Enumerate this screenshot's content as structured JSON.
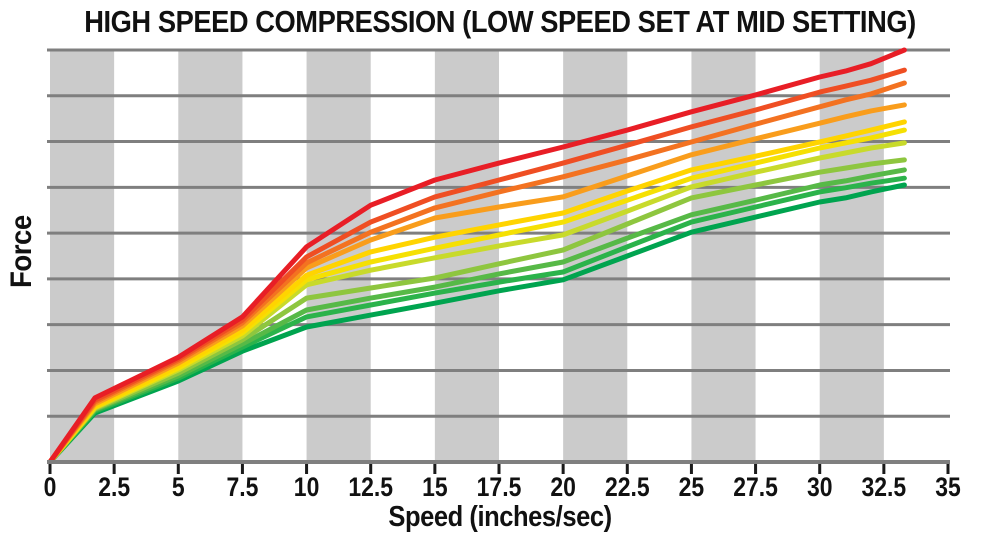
{
  "title": "HIGH SPEED COMPRESSION (LOW SPEED SET AT MID SETTING)",
  "chart_data": {
    "type": "line",
    "title": "HIGH SPEED COMPRESSION (LOW SPEED SET AT MID SETTING)",
    "xlabel": "Speed (inches/sec)",
    "ylabel": "Force",
    "xlim": [
      0,
      35
    ],
    "ylim": [
      0,
      9
    ],
    "x_tick_values": [
      0,
      2.5,
      5,
      7.5,
      10,
      12.5,
      15,
      17.5,
      20,
      22.5,
      25,
      27.5,
      30,
      32.5,
      35
    ],
    "x_tick_labels": [
      "0",
      "2.5",
      "5",
      "7.5",
      "10",
      "12.5",
      "15",
      "17.5",
      "20",
      "22.5",
      "25",
      "27.5",
      "30",
      "32.5",
      "35"
    ],
    "y_gridline_count": 10,
    "grid_on": true,
    "legend": "none",
    "colors": {
      "grid": "#7f7f7f",
      "stripe": "#cbcbcb",
      "tick": "#1a1a1a",
      "background": "#ffffff"
    },
    "background_stripes": {
      "note": "alternating vertical bands, gray on even 2.5-unit intervals",
      "gray_intervals": [
        [
          0,
          2.5
        ],
        [
          5,
          7.5
        ],
        [
          10,
          12.5
        ],
        [
          15,
          17.5
        ],
        [
          20,
          22.5
        ],
        [
          25,
          27.5
        ],
        [
          30,
          32.5
        ]
      ]
    },
    "x": [
      0,
      1.75,
      5,
      7.5,
      10,
      12.5,
      15,
      17.5,
      20,
      22.5,
      25,
      27.5,
      30,
      31,
      32,
      33.3
    ],
    "series": [
      {
        "name": "red",
        "color": "#e81e26",
        "values": [
          0,
          1.4,
          2.29,
          3.17,
          4.7,
          5.61,
          6.16,
          6.53,
          6.88,
          7.25,
          7.65,
          8.02,
          8.41,
          8.54,
          8.7,
          9.0
        ]
      },
      {
        "name": "red-orange",
        "color": "#ef4e23",
        "values": [
          0,
          1.35,
          2.25,
          3.1,
          4.48,
          5.24,
          5.79,
          6.16,
          6.53,
          6.92,
          7.32,
          7.69,
          8.08,
          8.21,
          8.34,
          8.56
        ]
      },
      {
        "name": "orange",
        "color": "#f37221",
        "values": [
          0,
          1.31,
          2.21,
          3.04,
          4.35,
          5.02,
          5.55,
          5.9,
          6.23,
          6.6,
          6.99,
          7.38,
          7.76,
          7.91,
          8.04,
          8.28
        ]
      },
      {
        "name": "amber",
        "color": "#f99d1c",
        "values": [
          0,
          1.27,
          2.16,
          2.97,
          4.24,
          4.85,
          5.33,
          5.57,
          5.79,
          6.25,
          6.71,
          7.06,
          7.4,
          7.54,
          7.67,
          7.8
        ]
      },
      {
        "name": "yellow",
        "color": "#ffd400",
        "values": [
          0,
          1.22,
          2.1,
          2.88,
          4.08,
          4.59,
          4.91,
          5.18,
          5.44,
          5.92,
          6.38,
          6.68,
          6.99,
          7.12,
          7.25,
          7.43
        ]
      },
      {
        "name": "yellow-2",
        "color": "#f5e003",
        "values": [
          0,
          1.2,
          2.05,
          2.82,
          3.98,
          4.37,
          4.67,
          4.96,
          5.24,
          5.72,
          6.2,
          6.53,
          6.86,
          6.97,
          7.08,
          7.25
        ]
      },
      {
        "name": "yellow-green",
        "color": "#c8da2b",
        "values": [
          0,
          1.18,
          2.01,
          2.75,
          3.87,
          4.19,
          4.46,
          4.72,
          4.96,
          5.48,
          6.01,
          6.33,
          6.64,
          6.75,
          6.86,
          6.97
        ]
      },
      {
        "name": "light-green",
        "color": "#8ec63f",
        "values": [
          0,
          1.16,
          1.94,
          2.67,
          3.58,
          3.8,
          4.02,
          4.33,
          4.63,
          5.2,
          5.77,
          6.05,
          6.33,
          6.42,
          6.51,
          6.6
        ]
      },
      {
        "name": "green",
        "color": "#57b947",
        "values": [
          0,
          1.14,
          1.88,
          2.58,
          3.32,
          3.58,
          3.82,
          4.11,
          4.37,
          4.89,
          5.4,
          5.72,
          6.05,
          6.14,
          6.25,
          6.38
        ]
      },
      {
        "name": "medium-green",
        "color": "#2bb34b",
        "values": [
          0,
          1.11,
          1.83,
          2.51,
          3.17,
          3.43,
          3.69,
          3.93,
          4.15,
          4.7,
          5.24,
          5.57,
          5.9,
          5.99,
          6.09,
          6.2
        ]
      },
      {
        "name": "dark-green",
        "color": "#00a44f",
        "values": [
          0,
          1.07,
          1.77,
          2.42,
          2.95,
          3.21,
          3.47,
          3.74,
          3.98,
          4.5,
          5.02,
          5.35,
          5.68,
          5.77,
          5.9,
          6.05
        ]
      }
    ]
  }
}
